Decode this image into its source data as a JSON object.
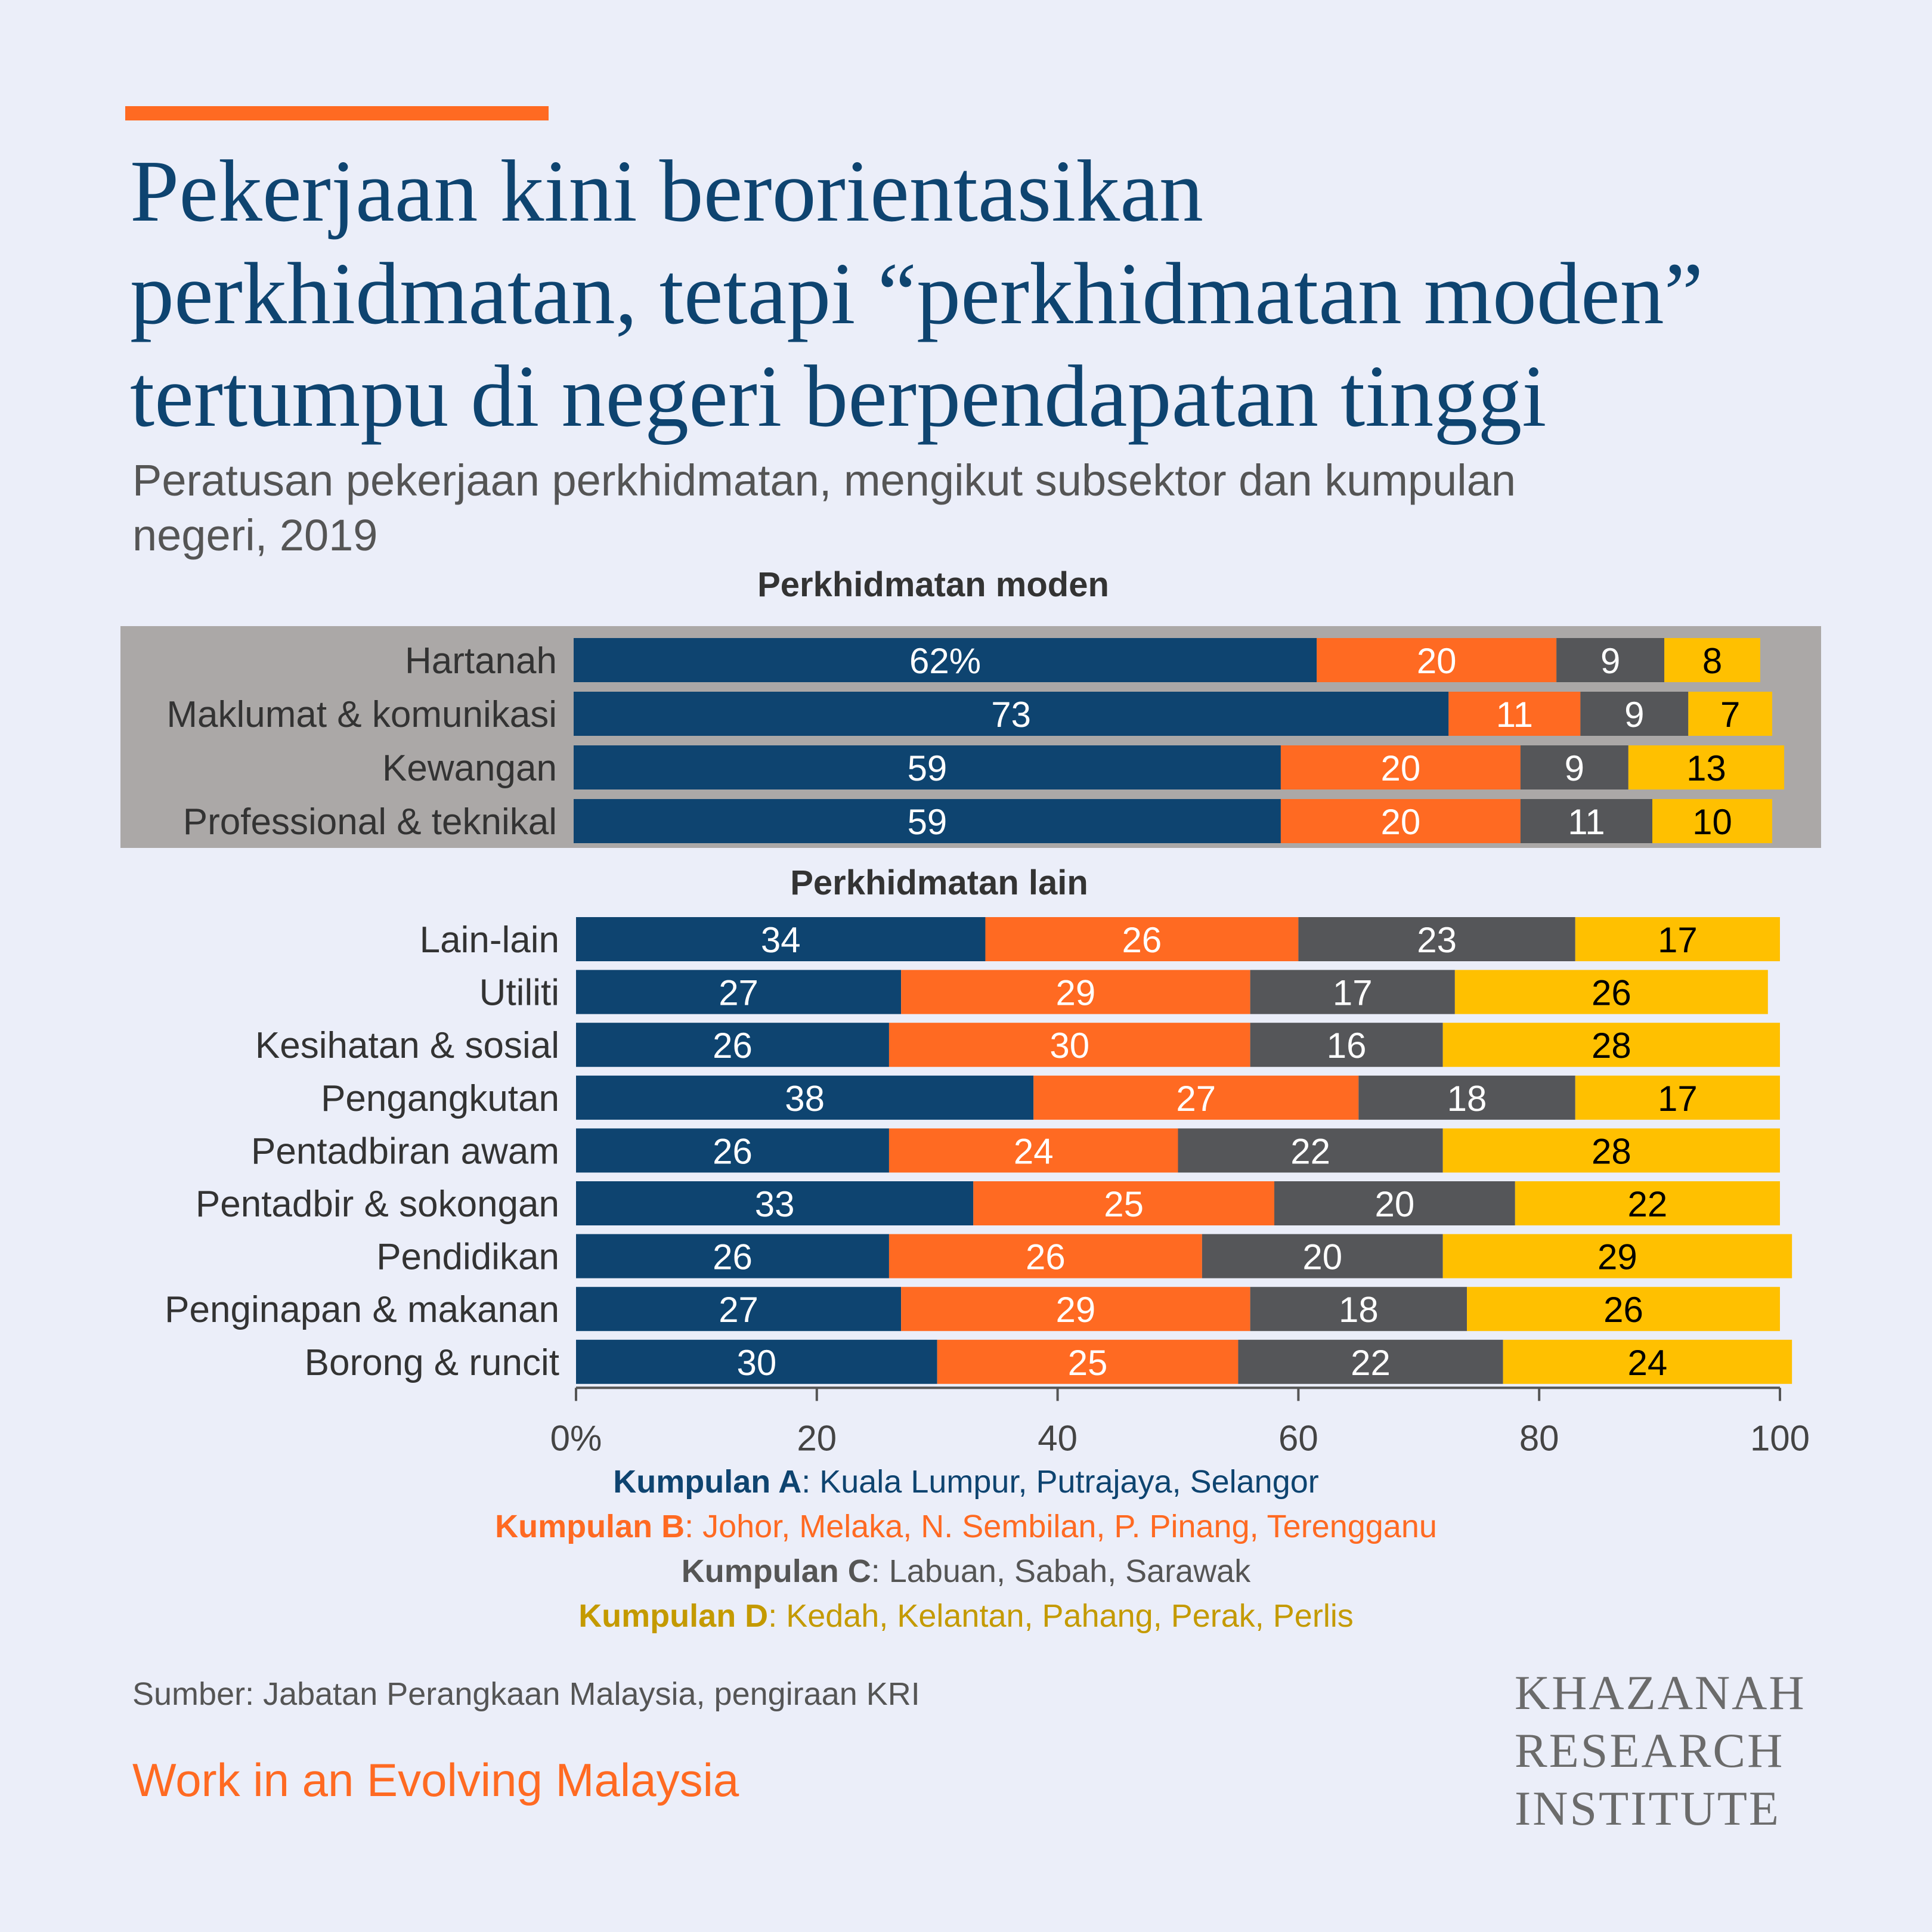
{
  "header": {
    "title_lines": [
      "Pekerjaan kini berorientasikan",
      "perkhidmatan, tetapi “perkhidmatan moden”",
      "tertumpu di negeri berpendapatan tinggi"
    ],
    "subtitle_lines": [
      "Peratusan pekerjaan perkhidmatan, mengikut subsektor dan kumpulan",
      "negeri, 2019"
    ]
  },
  "colors": {
    "group_a": "#0E4470",
    "group_b": "#FF6A22",
    "group_c": "#555659",
    "group_d": "#FFC000",
    "highlight_panel": "#ABA8A7",
    "background": "#EBEEF9"
  },
  "chart_data": {
    "type": "bar",
    "orientation": "horizontal",
    "stacked": true,
    "xlim": [
      0,
      100
    ],
    "x_ticks": [
      "0%",
      "20",
      "40",
      "60",
      "80",
      "100"
    ],
    "panels": [
      {
        "title": "Perkhidmatan moden",
        "highlighted": true,
        "categories": [
          "Hartanah",
          "Maklumat & komunikasi",
          "Kewangan",
          "Professional & teknikal"
        ],
        "series": [
          {
            "name": "Kumpulan A",
            "values": [
              62,
              73,
              59,
              59
            ]
          },
          {
            "name": "Kumpulan B",
            "values": [
              20,
              11,
              20,
              20
            ]
          },
          {
            "name": "Kumpulan C",
            "values": [
              9,
              9,
              9,
              11
            ]
          },
          {
            "name": "Kumpulan D",
            "values": [
              8,
              7,
              13,
              10
            ]
          }
        ],
        "data_labels": [
          [
            "62%",
            "20",
            "9",
            "8"
          ],
          [
            "73",
            "11",
            "9",
            "7"
          ],
          [
            "59",
            "20",
            "9",
            "13"
          ],
          [
            "59",
            "20",
            "11",
            "10"
          ]
        ]
      },
      {
        "title": "Perkhidmatan lain",
        "highlighted": false,
        "categories": [
          "Lain-lain",
          "Utiliti",
          "Kesihatan & sosial",
          "Pengangkutan",
          "Pentadbiran awam",
          "Pentadbir & sokongan",
          "Pendidikan",
          "Penginapan & makanan",
          "Borong & runcit"
        ],
        "series": [
          {
            "name": "Kumpulan A",
            "values": [
              34,
              27,
              26,
              38,
              26,
              33,
              26,
              27,
              30
            ]
          },
          {
            "name": "Kumpulan B",
            "values": [
              26,
              29,
              30,
              27,
              24,
              25,
              26,
              29,
              25
            ]
          },
          {
            "name": "Kumpulan C",
            "values": [
              23,
              17,
              16,
              18,
              22,
              20,
              20,
              18,
              22
            ]
          },
          {
            "name": "Kumpulan D",
            "values": [
              17,
              26,
              28,
              17,
              28,
              22,
              29,
              26,
              24
            ]
          }
        ],
        "data_labels": [
          [
            "34",
            "26",
            "23",
            "17"
          ],
          [
            "27",
            "29",
            "17",
            "26"
          ],
          [
            "26",
            "30",
            "16",
            "28"
          ],
          [
            "38",
            "27",
            "18",
            "17"
          ],
          [
            "26",
            "24",
            "22",
            "28"
          ],
          [
            "33",
            "25",
            "20",
            "22"
          ],
          [
            "26",
            "26",
            "20",
            "29"
          ],
          [
            "27",
            "29",
            "18",
            "26"
          ],
          [
            "30",
            "25",
            "22",
            "24"
          ]
        ]
      }
    ]
  },
  "legend": [
    {
      "group": "Kumpulan A",
      "states": ": Kuala Lumpur, Putrajaya, Selangor",
      "color": "#0E4470"
    },
    {
      "group": "Kumpulan B",
      "states": ": Johor, Melaka, N. Sembilan, P. Pinang, Terengganu",
      "color": "#FF6A22"
    },
    {
      "group": "Kumpulan C",
      "states": ": Labuan, Sabah, Sarawak",
      "color": "#555555"
    },
    {
      "group": "Kumpulan D",
      "states": ": Kedah, Kelantan, Pahang, Perak, Perlis",
      "color": "#C49A00"
    }
  ],
  "footer": {
    "source": "Sumber: Jabatan Perangkaan Malaysia, pengiraan KRI",
    "series_name": "Work in an Evolving Malaysia",
    "logo_lines": [
      "KHAZANAH",
      "RESEARCH",
      "INSTITUTE"
    ]
  }
}
